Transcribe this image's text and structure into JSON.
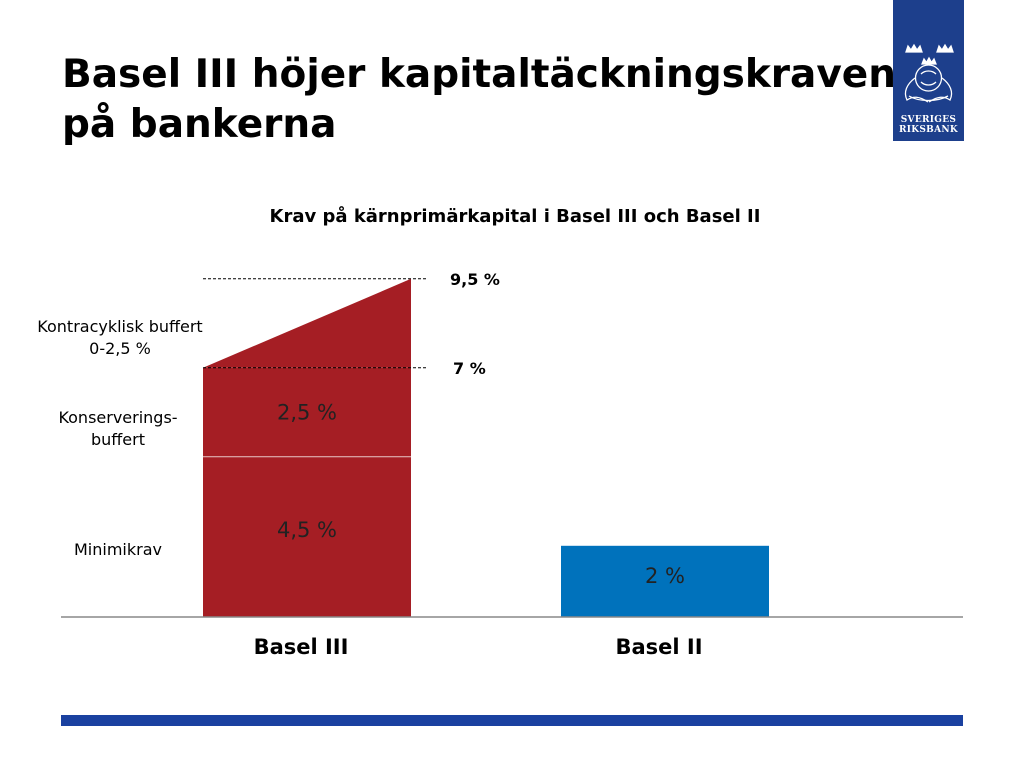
{
  "slide": {
    "title_line1": "Basel III höjer kapitaltäckningskraven",
    "title_line2": "på bankerna"
  },
  "logo": {
    "line1": "SVERIGES",
    "line2": "RIKSBANK",
    "icon": "riksbank-crest-icon",
    "color": "#1d3f8c"
  },
  "side_labels": {
    "countercyclical_line1": "Kontracyklisk buffert",
    "countercyclical_line2": "0-2,5 %",
    "conservation_line1": "Konserverings-",
    "conservation_line2": "buffert",
    "minimum": "Minimikrav"
  },
  "chart_data": {
    "type": "bar",
    "title": "Krav på kärnprimärkapital i Basel III och Basel II",
    "categories": [
      "Basel III",
      "Basel II"
    ],
    "stacked": true,
    "ylim": [
      0,
      10
    ],
    "grid": false,
    "series": [
      {
        "name": "Minimikrav",
        "values": [
          4.5,
          2
        ],
        "labels": [
          "4,5 %",
          "2 %"
        ],
        "colors": [
          "#a51e24",
          "#0072bc"
        ]
      },
      {
        "name": "Konserverings-buffert",
        "values": [
          2.5,
          0
        ],
        "labels": [
          "2,5 %",
          ""
        ],
        "colors": [
          "#a51e24",
          "#0072bc"
        ]
      },
      {
        "name": "Kontracyklisk buffert",
        "values_range": [
          0,
          2.5
        ],
        "category": "Basel III",
        "shape": "wedge",
        "color": "#a51e24"
      }
    ],
    "reference_lines": [
      {
        "value": 9.5,
        "label": "9,5 %"
      },
      {
        "value": 7,
        "label": "7 %"
      }
    ]
  },
  "colors": {
    "basel3": "#a51e24",
    "basel2": "#0072bc",
    "bottom_bar": "#1a41a0"
  }
}
